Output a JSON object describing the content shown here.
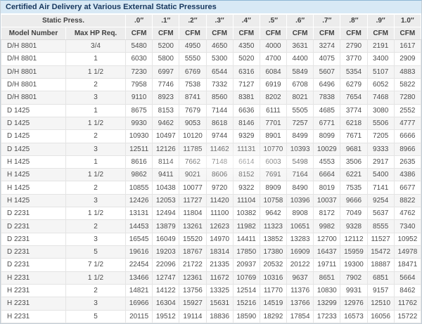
{
  "title": "Certified Air Delivery at Various External Static Pressures",
  "colors": {
    "title_bg": "#d8e9f5",
    "title_text": "#17375d",
    "header_bg": "#ececec",
    "row_alt_bg": "#f5f5f5",
    "grid_line": "#e4e4e4",
    "top_border": "#8fb6d4"
  },
  "table": {
    "static_press_label": "Static Press.",
    "model_number_label": "Model Number",
    "max_hp_label": "Max HP Req.",
    "cfm_label": "CFM",
    "pressures": [
      ".0″",
      ".1″",
      ".2″",
      ".3″",
      ".4″",
      ".5″",
      ".6″",
      ".7″",
      ".8″",
      ".9″",
      "1.0″"
    ],
    "rows": [
      {
        "model": "D/H 8801",
        "max_hp": "3/4",
        "cfm": [
          5480,
          5200,
          4950,
          4650,
          4350,
          4000,
          3631,
          3274,
          2790,
          2191,
          1617
        ]
      },
      {
        "model": "D/H 8801",
        "max_hp": "1",
        "cfm": [
          6030,
          5800,
          5550,
          5300,
          5020,
          4700,
          4400,
          4075,
          3770,
          3400,
          2909
        ]
      },
      {
        "model": "D/H 8801",
        "max_hp": "1 1/2",
        "cfm": [
          7230,
          6997,
          6769,
          6544,
          6316,
          6084,
          5849,
          5607,
          5354,
          5107,
          4883
        ]
      },
      {
        "model": "D/H 8801",
        "max_hp": "2",
        "cfm": [
          7958,
          7746,
          7538,
          7332,
          7127,
          6919,
          6708,
          6496,
          6279,
          6052,
          5822
        ]
      },
      {
        "model": "D/H 8801",
        "max_hp": "3",
        "cfm": [
          9110,
          8923,
          8741,
          8560,
          8381,
          8202,
          8021,
          7838,
          7654,
          7468,
          7280
        ]
      },
      {
        "model": "D 1425",
        "max_hp": "1",
        "cfm": [
          8675,
          8153,
          7679,
          7144,
          6636,
          6111,
          5505,
          4685,
          3774,
          3080,
          2552
        ]
      },
      {
        "model": "D 1425",
        "max_hp": "1 1/2",
        "cfm": [
          9930,
          9462,
          9053,
          8618,
          8146,
          7701,
          7257,
          6771,
          6218,
          5506,
          4777
        ]
      },
      {
        "model": "D 1425",
        "max_hp": "2",
        "cfm": [
          10930,
          10497,
          10120,
          9744,
          9329,
          8901,
          8499,
          8099,
          7671,
          7205,
          6666
        ]
      },
      {
        "model": "D 1425",
        "max_hp": "3",
        "cfm": [
          12511,
          12126,
          11785,
          11462,
          11131,
          10770,
          10393,
          10029,
          9681,
          9333,
          8966
        ]
      },
      {
        "model": "H 1425",
        "max_hp": "1",
        "cfm": [
          8616,
          8114,
          7662,
          7148,
          6614,
          6003,
          5498,
          4553,
          3506,
          2917,
          2635
        ]
      },
      {
        "model": "H 1425",
        "max_hp": "1 1/2",
        "cfm": [
          9862,
          9411,
          9021,
          8606,
          8152,
          7691,
          7164,
          6664,
          6221,
          5400,
          4386
        ]
      },
      {
        "model": "H 1425",
        "max_hp": "2",
        "cfm": [
          10855,
          10438,
          10077,
          9720,
          9322,
          8909,
          8490,
          8019,
          7535,
          7141,
          6677
        ]
      },
      {
        "model": "H 1425",
        "max_hp": "3",
        "cfm": [
          12426,
          12053,
          11727,
          11420,
          11104,
          10758,
          10396,
          10037,
          9666,
          9254,
          8822
        ]
      },
      {
        "model": "D 2231",
        "max_hp": "1 1/2",
        "cfm": [
          13131,
          12494,
          11804,
          11100,
          10382,
          9642,
          8908,
          8172,
          7049,
          5637,
          4762
        ]
      },
      {
        "model": "D 2231",
        "max_hp": "2",
        "cfm": [
          14453,
          13879,
          13261,
          12623,
          11982,
          11323,
          10651,
          9982,
          9328,
          8555,
          7340
        ]
      },
      {
        "model": "D 2231",
        "max_hp": "3",
        "cfm": [
          16545,
          16049,
          15520,
          14970,
          14411,
          13852,
          13283,
          12700,
          12112,
          11527,
          10952
        ]
      },
      {
        "model": "D 2231",
        "max_hp": "5",
        "cfm": [
          19616,
          19203,
          18767,
          18314,
          17850,
          17380,
          16909,
          16437,
          15959,
          15472,
          14978
        ]
      },
      {
        "model": "D 2231",
        "max_hp": "7 1/2",
        "cfm": [
          22454,
          22096,
          21722,
          21335,
          20937,
          20532,
          20122,
          19711,
          19300,
          18887,
          18471
        ]
      },
      {
        "model": "H 2231",
        "max_hp": "1 1/2",
        "cfm": [
          13466,
          12747,
          12361,
          11672,
          10769,
          10316,
          9637,
          8651,
          7902,
          6851,
          5664
        ]
      },
      {
        "model": "H 2231",
        "max_hp": "2",
        "cfm": [
          14821,
          14122,
          13756,
          13325,
          12514,
          11770,
          11376,
          10830,
          9931,
          9157,
          8462
        ]
      },
      {
        "model": "H 2231",
        "max_hp": "3",
        "cfm": [
          16966,
          16304,
          15927,
          15631,
          15216,
          14519,
          13766,
          13299,
          12976,
          12510,
          11762
        ]
      },
      {
        "model": "H 2231",
        "max_hp": "5",
        "cfm": [
          20115,
          19512,
          19114,
          18836,
          18590,
          18292,
          17854,
          17233,
          16573,
          16056,
          15722
        ]
      }
    ]
  }
}
